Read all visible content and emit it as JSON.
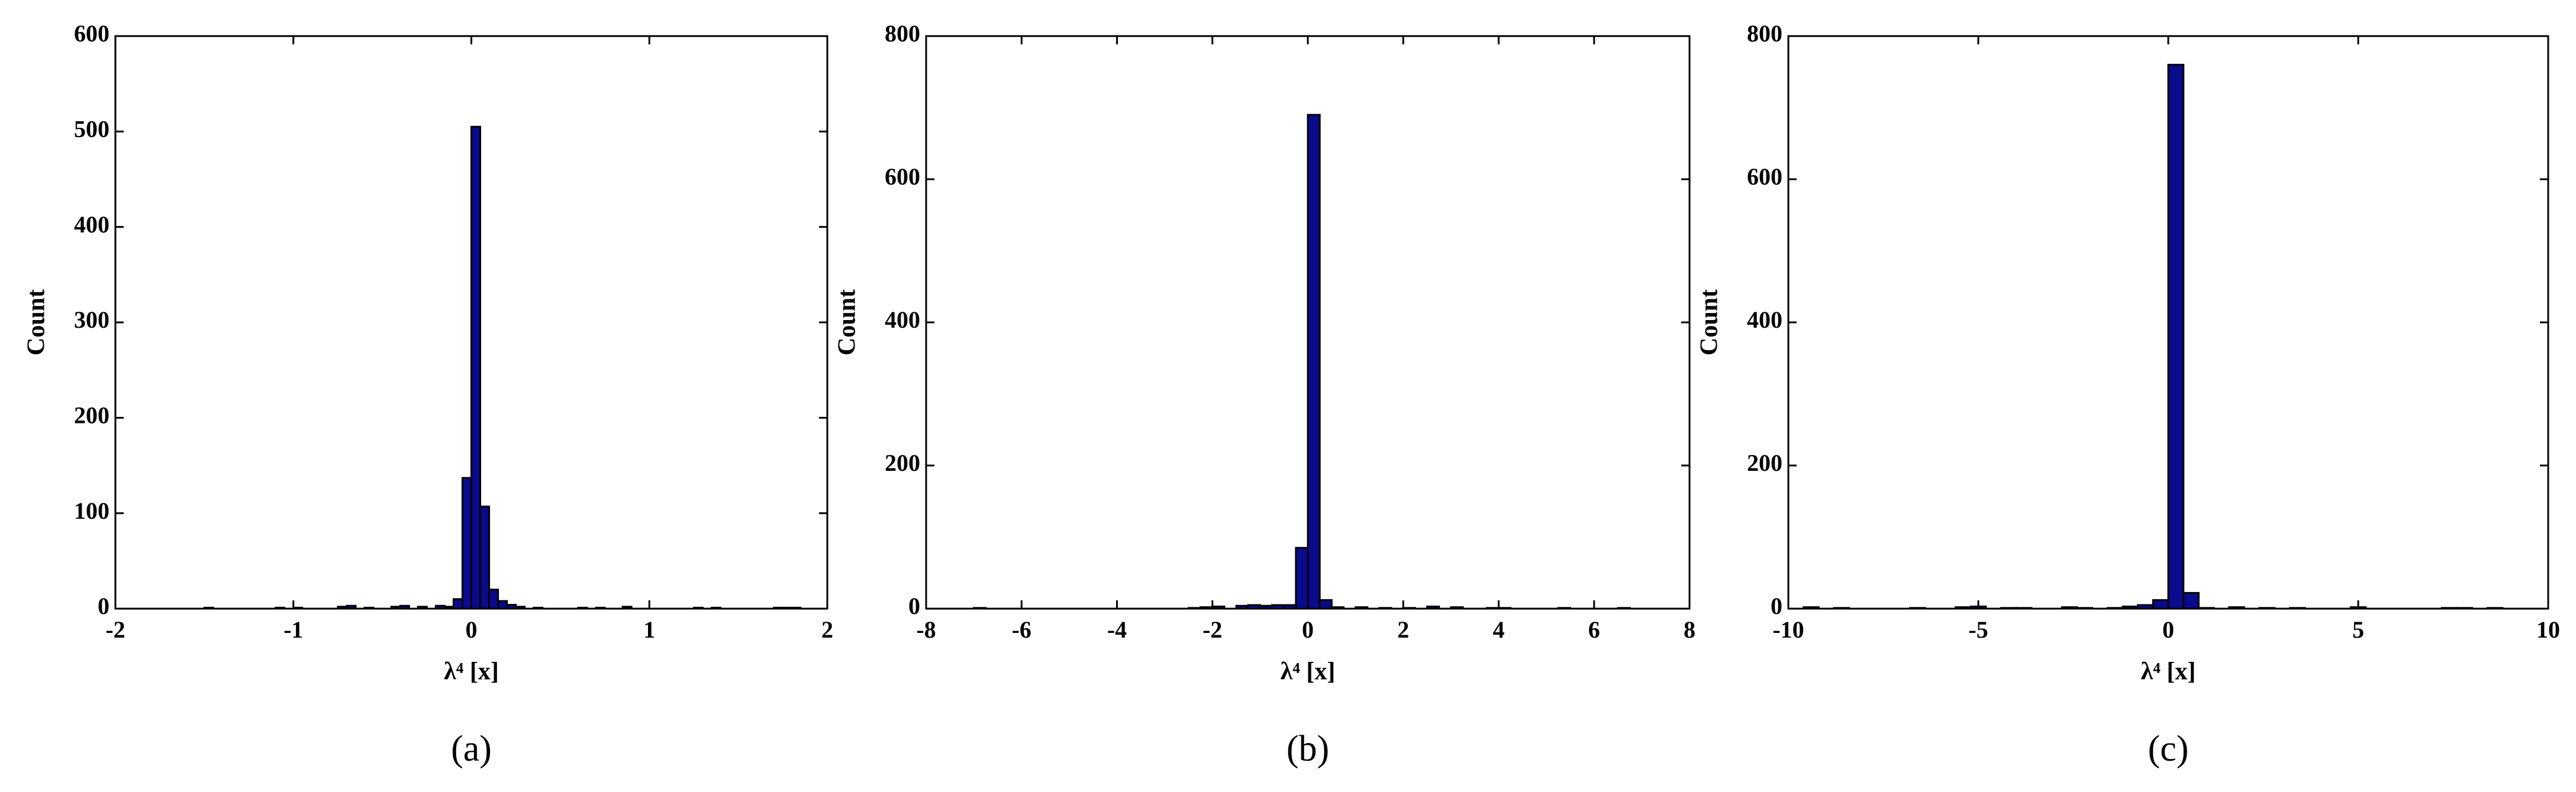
{
  "chart_data": [
    {
      "type": "histogram",
      "caption": "(a)",
      "xlabel": "λ⁴ [x]",
      "ylabel": "Count",
      "color": "#0a0a8c",
      "bins": [
        -1.5,
        -1.45,
        -1.4,
        -1.35,
        -1.3,
        -1.25,
        -1.2,
        -1.15,
        -1.1,
        -1.05,
        -1,
        -0.95,
        -0.9,
        -0.85,
        -0.8,
        -0.75,
        -0.7,
        -0.65,
        -0.6,
        -0.55,
        -0.5,
        -0.45,
        -0.4,
        -0.35,
        -0.3,
        -0.25,
        -0.2,
        -0.15,
        -0.1,
        -0.05,
        0,
        0.05,
        0.1,
        0.15,
        0.2,
        0.25,
        0.3,
        0.35,
        0.4,
        0.45,
        0.5,
        0.55,
        0.6,
        0.65,
        0.7,
        0.75,
        0.8,
        0.85,
        0.9,
        0.95,
        1,
        1.05,
        1.1,
        1.15,
        1.2,
        1.25,
        1.3,
        1.35,
        1.4,
        1.45,
        1.5,
        1.55,
        1.6,
        1.65,
        1.7,
        1.75,
        1.8,
        1.85
      ],
      "values": [
        1,
        0,
        0,
        0,
        0,
        0,
        0,
        0,
        1,
        0,
        1,
        0,
        0,
        0,
        0,
        2,
        3,
        0,
        1,
        0,
        0,
        2,
        3,
        0,
        2,
        0,
        3,
        2,
        10,
        137,
        505,
        107,
        20,
        8,
        4,
        2,
        0,
        1,
        0,
        0,
        0,
        0,
        1,
        0,
        1,
        0,
        0,
        2,
        0,
        0,
        0,
        0,
        0,
        0,
        0,
        1,
        0,
        1,
        0,
        0,
        0,
        0,
        0,
        0,
        1,
        1,
        1
      ],
      "xlim": [
        -2,
        2
      ],
      "xticks": [
        -2,
        -1,
        0,
        1,
        2
      ],
      "ylim": [
        0,
        600
      ],
      "yticks": [
        0,
        100,
        200,
        300,
        400,
        500,
        600
      ]
    },
    {
      "type": "histogram",
      "caption": "(b)",
      "xlabel": "λ⁴ [x]",
      "ylabel": "Count",
      "color": "#0a0a8c",
      "bins": [
        -7,
        -6.75,
        -6.5,
        -6.25,
        -6,
        -5.75,
        -5.5,
        -5.25,
        -5,
        -4.75,
        -4.5,
        -4.25,
        -4,
        -3.75,
        -3.5,
        -3.25,
        -3,
        -2.75,
        -2.5,
        -2.25,
        -2,
        -1.75,
        -1.5,
        -1.25,
        -1,
        -0.75,
        -0.5,
        -0.25,
        0,
        0.25,
        0.5,
        0.75,
        1,
        1.25,
        1.5,
        1.75,
        2,
        2.25,
        2.5,
        2.75,
        3,
        3.25,
        3.5,
        3.75,
        4,
        4.25,
        4.5,
        4.75,
        5,
        5.25,
        5.5,
        5.75,
        6,
        6.25,
        6.5,
        6.75
      ],
      "values": [
        1,
        0,
        0,
        0,
        0,
        0,
        0,
        0,
        0,
        0,
        0,
        0,
        0,
        0,
        0,
        0,
        0,
        0,
        1,
        2,
        3,
        0,
        4,
        5,
        4,
        5,
        5,
        85,
        690,
        12,
        2,
        0,
        2,
        0,
        1,
        0,
        1,
        0,
        3,
        0,
        2,
        0,
        0,
        1,
        1,
        0,
        0,
        0,
        0,
        1,
        0,
        0,
        0,
        0,
        1
      ],
      "xlim": [
        -8,
        8
      ],
      "xticks": [
        -8,
        -6,
        -4,
        -2,
        0,
        2,
        4,
        6,
        8
      ],
      "ylim": [
        0,
        800
      ],
      "yticks": [
        0,
        200,
        400,
        600,
        800
      ]
    },
    {
      "type": "histogram",
      "caption": "(c)",
      "xlabel": "λ⁴ [x]",
      "ylabel": "Count",
      "color": "#0a0a8c",
      "bins": [
        -9.6,
        -9.2,
        -8.8,
        -8.4,
        -8,
        -7.6,
        -7.2,
        -6.8,
        -6.4,
        -6,
        -5.6,
        -5.2,
        -4.8,
        -4.4,
        -4,
        -3.6,
        -3.2,
        -2.8,
        -2.4,
        -2,
        -1.6,
        -1.2,
        -0.8,
        -0.4,
        0,
        0.4,
        0.8,
        1.2,
        1.6,
        2,
        2.4,
        2.8,
        3.2,
        3.6,
        4,
        4.4,
        4.8,
        5.2,
        5.6,
        6,
        6.4,
        6.8,
        7.2,
        7.6,
        8,
        8.4,
        8.8
      ],
      "values": [
        2,
        0,
        1,
        0,
        0,
        0,
        0,
        1,
        0,
        0,
        2,
        3,
        0,
        1,
        1,
        0,
        0,
        2,
        1,
        0,
        1,
        3,
        5,
        12,
        760,
        22,
        1,
        0,
        2,
        0,
        1,
        0,
        1,
        0,
        0,
        0,
        2,
        0,
        0,
        0,
        0,
        0,
        1,
        1,
        0,
        1
      ],
      "xlim": [
        -10,
        10
      ],
      "xticks": [
        -10,
        -5,
        0,
        5,
        10
      ],
      "ylim": [
        0,
        800
      ],
      "yticks": [
        0,
        200,
        400,
        600,
        800
      ]
    }
  ]
}
